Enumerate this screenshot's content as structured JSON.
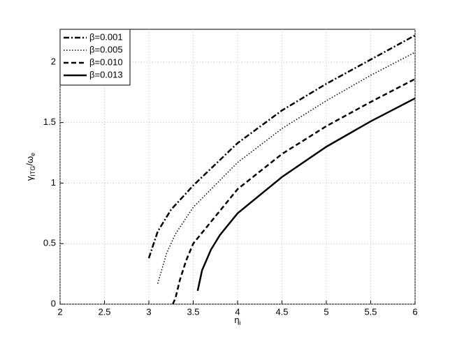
{
  "chart_data": {
    "type": "line",
    "xlabel": [
      "η",
      "i"
    ],
    "ylabel": [
      "γ",
      "ITG",
      "/ω",
      "e"
    ],
    "xlim": [
      2,
      6
    ],
    "ylim": [
      0,
      2.27
    ],
    "xticks": [
      2,
      2.5,
      3,
      3.5,
      4,
      4.5,
      5,
      5.5,
      6
    ],
    "yticks": [
      0,
      0.5,
      1,
      1.5,
      2
    ],
    "grid": true,
    "legend": "upper left",
    "series": [
      {
        "name": "β=0.001",
        "color": "#000000",
        "linestyle": "dashdot",
        "x": [
          3.0,
          3.1,
          3.25,
          3.5,
          4,
          4.5,
          5,
          5.5,
          6
        ],
        "values": [
          0.38,
          0.6,
          0.78,
          0.98,
          1.33,
          1.6,
          1.82,
          2.02,
          2.22
        ]
      },
      {
        "name": "β=0.005",
        "color": "#000000",
        "linestyle": "dotted",
        "x": [
          3.1,
          3.2,
          3.3,
          3.5,
          4,
          4.5,
          5,
          5.5,
          6
        ],
        "values": [
          0.17,
          0.42,
          0.58,
          0.8,
          1.17,
          1.45,
          1.68,
          1.89,
          2.08
        ]
      },
      {
        "name": "β=0.010",
        "color": "#000000",
        "linestyle": "dashed",
        "x": [
          3.27,
          3.3,
          3.35,
          3.42,
          3.5,
          4,
          4.5,
          5,
          5.5,
          6
        ],
        "values": [
          0,
          0.05,
          0.2,
          0.36,
          0.5,
          0.95,
          1.24,
          1.47,
          1.67,
          1.86
        ]
      },
      {
        "name": "β=0.013",
        "color": "#000000",
        "linestyle": "solid",
        "x": [
          3.55,
          3.6,
          3.7,
          3.8,
          4,
          4.5,
          5,
          5.5,
          6
        ],
        "values": [
          0.11,
          0.28,
          0.45,
          0.57,
          0.75,
          1.05,
          1.3,
          1.51,
          1.7
        ]
      }
    ]
  }
}
